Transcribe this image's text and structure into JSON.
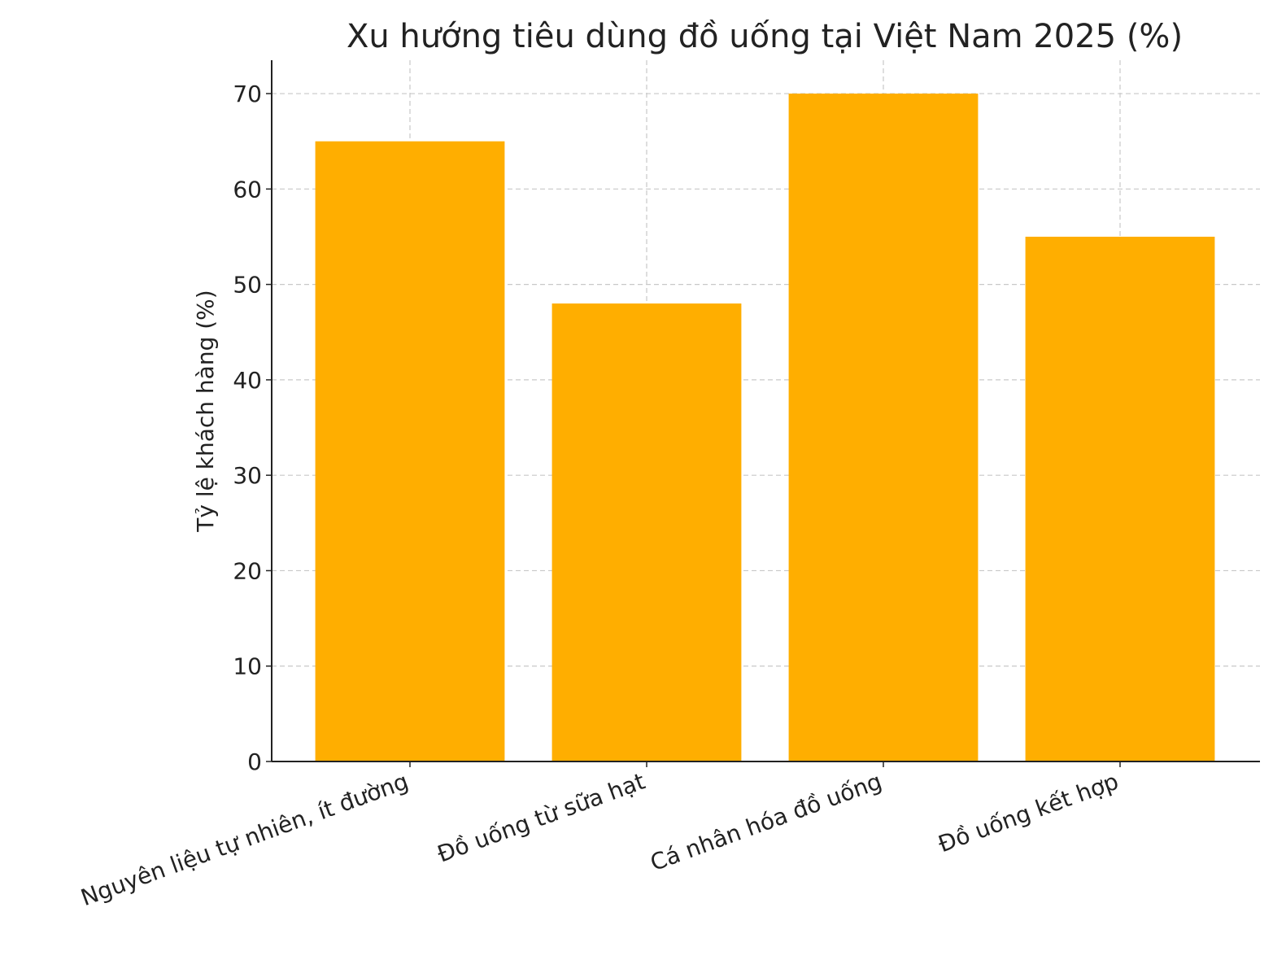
{
  "chart_data": {
    "type": "bar",
    "title": "Xu hướng tiêu dùng đồ uống tại Việt Nam 2025 (%)",
    "y_label": "Tỷ lệ khách hàng (%)",
    "categories": [
      "Nguyên liệu tự nhiên, ít đường",
      "Đồ uống từ sữa hạt",
      "Cá nhân hóa đồ uống",
      "Đồ uống kết hợp"
    ],
    "values": [
      65,
      48,
      70,
      55
    ],
    "color": "#ffae00",
    "ylim": [
      0,
      73.5
    ],
    "yticks": [
      0,
      10,
      20,
      30,
      40,
      50,
      60,
      70
    ],
    "grid": true
  }
}
